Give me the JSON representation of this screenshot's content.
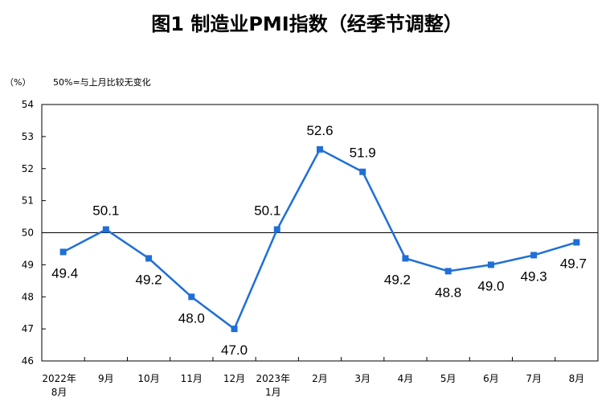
{
  "chart_data": {
    "type": "line",
    "title": "图1 制造业PMI指数（经季节调整）",
    "ylabel": "（%）",
    "annotation": "50%=与上月比较无变化",
    "categories": [
      [
        "2022年",
        "8月"
      ],
      [
        "9月"
      ],
      [
        "10月"
      ],
      [
        "11月"
      ],
      [
        "12月"
      ],
      [
        "2023年",
        "1月"
      ],
      [
        "2月"
      ],
      [
        "3月"
      ],
      [
        "4月"
      ],
      [
        "5月"
      ],
      [
        "6月"
      ],
      [
        "7月"
      ],
      [
        "8月"
      ]
    ],
    "values": [
      49.4,
      50.1,
      49.2,
      48.0,
      47.0,
      50.1,
      52.6,
      51.9,
      49.2,
      48.8,
      49.0,
      49.3,
      49.7
    ],
    "value_labels": [
      "49.4",
      "50.1",
      "49.2",
      "48.0",
      "47.0",
      "50.1",
      "52.6",
      "51.9",
      "49.2",
      "48.8",
      "49.0",
      "49.3",
      "49.7"
    ],
    "ylim": [
      46,
      54
    ],
    "yticks": [
      "46",
      "47",
      "48",
      "49",
      "50",
      "51",
      "52",
      "53",
      "54"
    ],
    "reference_line": 50,
    "line_color": "#1f6fd6"
  }
}
